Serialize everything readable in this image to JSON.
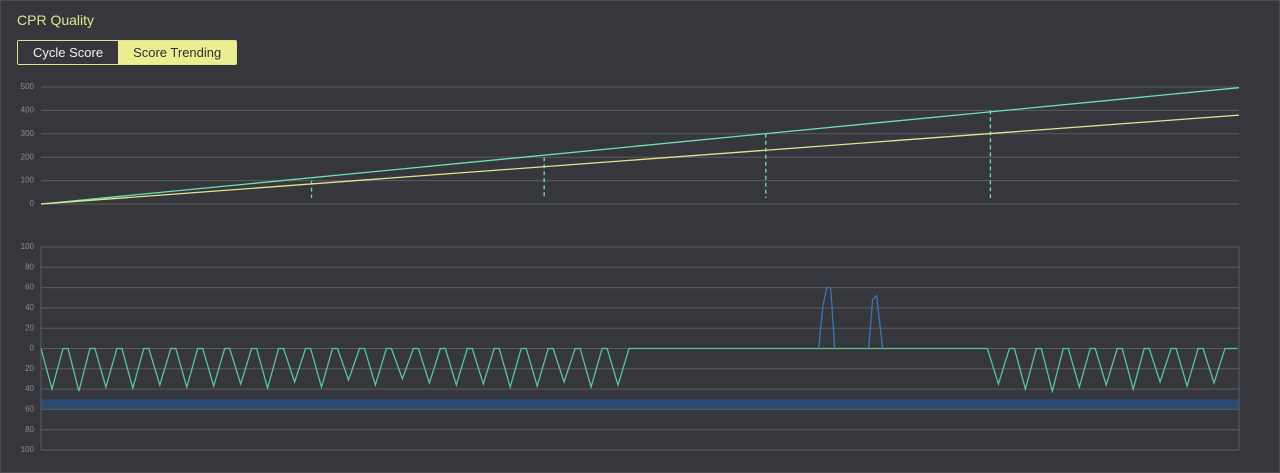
{
  "header": {
    "title": "CPR Quality"
  },
  "tabs": [
    {
      "label": "Cycle Score",
      "active": false
    },
    {
      "label": "Score Trending",
      "active": true
    }
  ],
  "chart_data": [
    {
      "type": "line",
      "xlim": [
        0,
        120
      ],
      "ylim": [
        0,
        500
      ],
      "yticks": [
        0,
        100,
        200,
        300,
        400,
        500
      ],
      "grid": true,
      "series": [
        {
          "color": "#6fe0b2",
          "x": [
            0,
            120
          ],
          "values": [
            0,
            497
          ]
        },
        {
          "color": "#e6e28c",
          "x": [
            0,
            120
          ],
          "values": [
            0,
            380
          ]
        }
      ],
      "markers": {
        "color": "#6fe0b2",
        "x": [
          27.1,
          50.4,
          72.6,
          95.1
        ],
        "values": [
          100,
          200,
          300,
          400
        ]
      }
    },
    {
      "type": "line",
      "xlim": [
        0,
        120
      ],
      "ylim": [
        -100,
        100
      ],
      "yticks": [
        100,
        80,
        60,
        40,
        20,
        0,
        {
          "value": -20,
          "label": "20"
        },
        {
          "value": -40,
          "label": "40"
        },
        {
          "value": -60,
          "label": "60"
        },
        {
          "value": -80,
          "label": "80"
        },
        {
          "value": -100,
          "label": "100"
        }
      ],
      "grid": true,
      "band": {
        "color": "#2c4a70",
        "values": [
          -50,
          -60
        ]
      },
      "series": [
        {
          "color": "#5cc2a0",
          "x": [
            0,
            1.1,
            2.2,
            2.7,
            3.8,
            4.9,
            5.4,
            6.5,
            7.6,
            8.1,
            9.2,
            10.3,
            10.8,
            11.9,
            13,
            13.5,
            14.6,
            15.7,
            16.2,
            17.3,
            18.4,
            18.9,
            20,
            21.1,
            21.6,
            22.7,
            23.8,
            24.3,
            25.4,
            26.5,
            27,
            28.1,
            29.2,
            29.7,
            30.8,
            31.9,
            32.4,
            33.5,
            34.6,
            35.1,
            36.2,
            37.3,
            37.8,
            38.9,
            40,
            40.5,
            41.6,
            42.7,
            43.2,
            44.3,
            45.4,
            45.9,
            47,
            48.1,
            48.6,
            49.7,
            50.8,
            51.3,
            52.4,
            53.5,
            54,
            55.1,
            56.2,
            56.7,
            57.8,
            58.9,
            94.8,
            95.9,
            97,
            97.5,
            98.6,
            99.7,
            100.2,
            101.3,
            102.4,
            102.9,
            104,
            105.1,
            105.6,
            106.7,
            107.8,
            108.3,
            109.4,
            110.5,
            111,
            112.1,
            113.2,
            113.7,
            114.8,
            115.9,
            116.4,
            117.5,
            118.6,
            119.8
          ],
          "values": [
            0,
            -40,
            0,
            0,
            -42,
            0,
            0,
            -38,
            0,
            0,
            -39,
            0,
            0,
            -36,
            0,
            0,
            -38,
            0,
            0,
            -37,
            0,
            0,
            -35,
            0,
            0,
            -39,
            0,
            0,
            -33,
            0,
            0,
            -38,
            0,
            0,
            -31,
            0,
            0,
            -36,
            0,
            0,
            -30,
            0,
            0,
            -34,
            0,
            0,
            -36,
            0,
            0,
            -35,
            0,
            0,
            -38,
            0,
            0,
            -37,
            0,
            0,
            -33,
            0,
            0,
            -38,
            0,
            0,
            -36,
            0,
            0,
            -35,
            0,
            0,
            -40,
            0,
            0,
            -42,
            0,
            0,
            -38,
            0,
            0,
            -36,
            0,
            0,
            -40,
            0,
            0,
            -33,
            0,
            0,
            -37,
            0,
            0,
            -34,
            0,
            0
          ]
        },
        {
          "color": "#3d74b8",
          "x": [
            77.9,
            78.3,
            78.7,
            79.1,
            79.5,
            null,
            82.9,
            83.3,
            83.7,
            84.3
          ],
          "values": [
            0,
            40,
            60,
            60,
            0,
            null,
            0,
            48,
            52,
            0
          ]
        }
      ]
    }
  ]
}
